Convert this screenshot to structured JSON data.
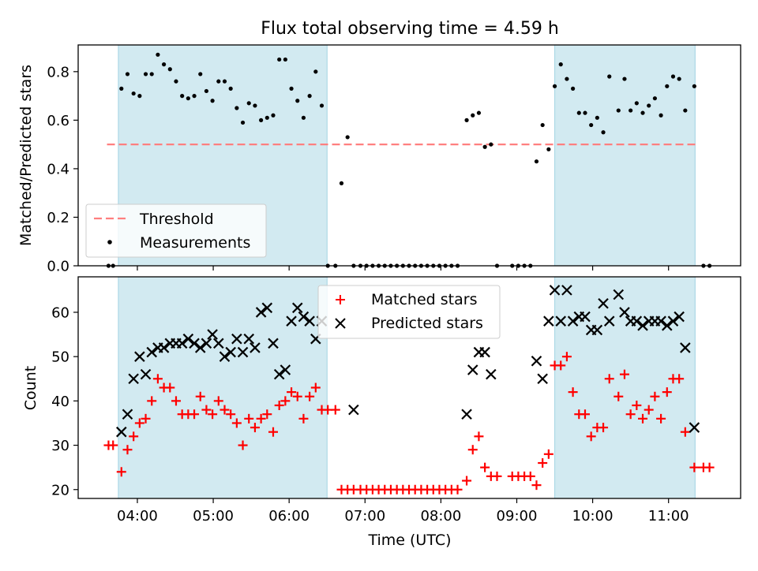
{
  "chart_data": [
    {
      "type": "scatter",
      "title": "Flux total observing time = 4.59 h",
      "xlabel": "",
      "ylabel": "Matched/Predicted stars",
      "xlim": [
        3.22,
        11.95
      ],
      "ylim": [
        0,
        0.91
      ],
      "yticks": [
        0.0,
        0.2,
        0.4,
        0.6,
        0.8
      ],
      "ytick_labels": [
        "0.0",
        "0.2",
        "0.4",
        "0.6",
        "0.8"
      ],
      "shaded_intervals": [
        [
          3.75,
          6.5
        ],
        [
          9.5,
          11.35
        ]
      ],
      "shade_color": "#add8e6",
      "threshold": {
        "name": "Threshold",
        "y": 0.5,
        "x_range": [
          3.6,
          11.4
        ],
        "color": "#ff7f7f"
      },
      "series": [
        {
          "name": "Measurements",
          "marker": "dot",
          "color": "#000000",
          "x": [
            3.62,
            3.68,
            3.79,
            3.87,
            3.95,
            4.03,
            4.11,
            4.19,
            4.27,
            4.35,
            4.43,
            4.51,
            4.59,
            4.67,
            4.75,
            4.83,
            4.91,
            4.99,
            5.07,
            5.15,
            5.23,
            5.31,
            5.39,
            5.47,
            5.55,
            5.63,
            5.71,
            5.79,
            5.87,
            5.95,
            6.03,
            6.11,
            6.19,
            6.27,
            6.35,
            6.43,
            6.51,
            6.61,
            6.69,
            6.77,
            6.85,
            6.94,
            7.02,
            7.1,
            7.18,
            7.26,
            7.34,
            7.42,
            7.5,
            7.58,
            7.66,
            7.74,
            7.82,
            7.9,
            7.98,
            8.06,
            8.14,
            8.22,
            8.34,
            8.42,
            8.5,
            8.58,
            8.66,
            8.74,
            8.94,
            9.02,
            9.1,
            9.18,
            9.26,
            9.34,
            9.42,
            9.5,
            9.58,
            9.66,
            9.74,
            9.82,
            9.9,
            9.98,
            10.06,
            10.14,
            10.22,
            10.34,
            10.42,
            10.5,
            10.58,
            10.66,
            10.74,
            10.82,
            10.9,
            10.98,
            11.06,
            11.14,
            11.22,
            11.34,
            11.46,
            11.54
          ],
          "y": [
            0,
            0,
            0.73,
            0.79,
            0.71,
            0.7,
            0.79,
            0.79,
            0.87,
            0.83,
            0.81,
            0.76,
            0.7,
            0.69,
            0.7,
            0.79,
            0.72,
            0.68,
            0.76,
            0.76,
            0.73,
            0.65,
            0.59,
            0.67,
            0.66,
            0.6,
            0.61,
            0.62,
            0.85,
            0.85,
            0.73,
            0.68,
            0.61,
            0.7,
            0.8,
            0.66,
            0,
            0,
            0.34,
            0.53,
            0,
            0,
            0,
            0,
            0,
            0,
            0,
            0,
            0,
            0,
            0,
            0,
            0,
            0,
            0,
            0,
            0,
            0,
            0.6,
            0.62,
            0.63,
            0.49,
            0.5,
            0,
            0,
            0,
            0,
            0,
            0.43,
            0.58,
            0.48,
            0.74,
            0.83,
            0.77,
            0.73,
            0.63,
            0.63,
            0.58,
            0.61,
            0.55,
            0.78,
            0.64,
            0.77,
            0.64,
            0.67,
            0.63,
            0.66,
            0.69,
            0.62,
            0.74,
            0.78,
            0.77,
            0.64,
            0.74,
            0,
            0
          ]
        }
      ],
      "legend": {
        "position": "lower-left",
        "entries": [
          "Threshold",
          "Measurements"
        ]
      }
    },
    {
      "type": "scatter",
      "title": "",
      "xlabel": "Time (UTC)",
      "ylabel": "Count",
      "xlim": [
        3.22,
        11.95
      ],
      "ylim": [
        18,
        68
      ],
      "xticks": [
        4,
        5,
        6,
        7,
        8,
        9,
        10,
        11
      ],
      "xtick_labels": [
        "04:00",
        "05:00",
        "06:00",
        "07:00",
        "08:00",
        "09:00",
        "10:00",
        "11:00"
      ],
      "yticks": [
        20,
        30,
        40,
        50,
        60
      ],
      "ytick_labels": [
        "20",
        "30",
        "40",
        "50",
        "60"
      ],
      "shaded_intervals": [
        [
          3.75,
          6.5
        ],
        [
          9.5,
          11.35
        ]
      ],
      "shade_color": "#add8e6",
      "series": [
        {
          "name": "Matched stars",
          "marker": "plus",
          "color": "#ff0000",
          "x": [
            3.62,
            3.68,
            3.79,
            3.87,
            3.95,
            4.03,
            4.11,
            4.19,
            4.27,
            4.35,
            4.43,
            4.51,
            4.59,
            4.67,
            4.75,
            4.83,
            4.91,
            4.99,
            5.07,
            5.15,
            5.23,
            5.31,
            5.39,
            5.47,
            5.55,
            5.63,
            5.71,
            5.79,
            5.87,
            5.95,
            6.03,
            6.11,
            6.19,
            6.27,
            6.35,
            6.43,
            6.51,
            6.61,
            6.69,
            6.77,
            6.85,
            6.94,
            7.02,
            7.1,
            7.18,
            7.26,
            7.34,
            7.42,
            7.5,
            7.58,
            7.66,
            7.74,
            7.82,
            7.9,
            7.98,
            8.06,
            8.14,
            8.22,
            8.34,
            8.42,
            8.5,
            8.58,
            8.66,
            8.74,
            8.94,
            9.02,
            9.1,
            9.18,
            9.26,
            9.34,
            9.42,
            9.5,
            9.58,
            9.66,
            9.74,
            9.82,
            9.9,
            9.98,
            10.06,
            10.14,
            10.22,
            10.34,
            10.42,
            10.5,
            10.58,
            10.66,
            10.74,
            10.82,
            10.9,
            10.98,
            11.06,
            11.14,
            11.22,
            11.34,
            11.46,
            11.54
          ],
          "y": [
            30,
            30,
            24,
            29,
            32,
            35,
            36,
            40,
            45,
            43,
            43,
            40,
            37,
            37,
            37,
            41,
            38,
            37,
            40,
            38,
            37,
            35,
            30,
            36,
            34,
            36,
            37,
            33,
            39,
            40,
            42,
            41,
            36,
            41,
            43,
            38,
            38,
            38,
            20,
            20,
            20,
            20,
            20,
            20,
            20,
            20,
            20,
            20,
            20,
            20,
            20,
            20,
            20,
            20,
            20,
            20,
            20,
            20,
            22,
            29,
            32,
            25,
            23,
            23,
            23,
            23,
            23,
            23,
            21,
            26,
            28,
            48,
            48,
            50,
            42,
            37,
            37,
            32,
            34,
            34,
            45,
            41,
            46,
            37,
            39,
            36,
            38,
            41,
            36,
            42,
            45,
            45,
            33,
            25,
            25,
            25
          ]
        },
        {
          "name": "Predicted stars",
          "marker": "x",
          "color": "#000000",
          "x": [
            3.79,
            3.87,
            3.95,
            4.03,
            4.11,
            4.19,
            4.27,
            4.35,
            4.43,
            4.51,
            4.59,
            4.67,
            4.75,
            4.83,
            4.91,
            4.99,
            5.07,
            5.15,
            5.23,
            5.31,
            5.39,
            5.47,
            5.55,
            5.63,
            5.71,
            5.79,
            5.87,
            5.95,
            6.03,
            6.11,
            6.19,
            6.27,
            6.35,
            6.43,
            6.85,
            8.34,
            8.42,
            8.5,
            8.58,
            8.66,
            9.26,
            9.34,
            9.42,
            9.5,
            9.58,
            9.66,
            9.74,
            9.82,
            9.9,
            9.98,
            10.06,
            10.14,
            10.22,
            10.34,
            10.42,
            10.5,
            10.58,
            10.66,
            10.74,
            10.82,
            10.9,
            10.98,
            11.06,
            11.14,
            11.22,
            11.34
          ],
          "y": [
            33,
            37,
            45,
            50,
            46,
            51,
            52,
            52,
            53,
            53,
            53,
            54,
            53,
            52,
            53,
            55,
            53,
            50,
            51,
            54,
            51,
            54,
            52,
            60,
            61,
            53,
            46,
            47,
            58,
            61,
            59,
            58,
            54,
            58,
            38,
            37,
            47,
            51,
            51,
            46,
            49,
            45,
            58,
            65,
            58,
            65,
            58,
            59,
            59,
            56,
            56,
            62,
            58,
            64,
            60,
            58,
            58,
            57,
            58,
            58,
            58,
            57,
            58,
            59,
            52,
            34
          ]
        }
      ],
      "legend": {
        "position": "upper-center",
        "entries": [
          "Matched stars",
          "Predicted stars"
        ]
      }
    }
  ]
}
